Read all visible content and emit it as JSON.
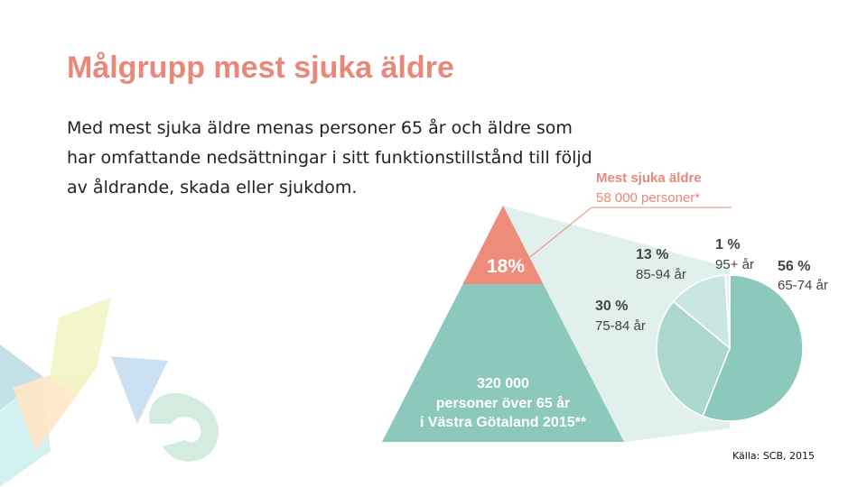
{
  "slide": {
    "title": "Målgrupp mest sjuka äldre",
    "body": "Med mest sjuka äldre menas personer 65 år och äldre som har omfattande nedsättningar i sitt funktionstillstånd till följd av åldrande, skada eller sjukdom.",
    "source": "Källa: SCB, 2015"
  },
  "colors": {
    "title": "#e8887a",
    "pyramid_top": "#ed8c7b",
    "pyramid_base": "#8cc9bc",
    "projection": "#e1efed",
    "pie": [
      "#8cc9bc",
      "#abd7cd",
      "#cae6e0",
      "#e6f3f0"
    ],
    "callout_text": "#e8887a"
  },
  "chart_data": [
    {
      "type": "pyramid",
      "segments": [
        {
          "label": "18%",
          "value": 18
        },
        {
          "label_lines": [
            "320 000",
            "personer över 65 år",
            "i Västra Götaland 2015**"
          ],
          "value": 320000
        }
      ],
      "callout": {
        "lines": [
          "Mest sjuka äldre",
          "58 000 personer*"
        ]
      }
    },
    {
      "type": "pie",
      "slices": [
        {
          "percent_label": "56 %",
          "age_label": "65-74 år",
          "value": 56
        },
        {
          "percent_label": "30 %",
          "age_label": "75-84 år",
          "value": 30
        },
        {
          "percent_label": "13 %",
          "age_label": "85-94 år",
          "value": 13
        },
        {
          "percent_label": "1 %",
          "age_label": "95+ år",
          "value": 1
        }
      ]
    }
  ]
}
